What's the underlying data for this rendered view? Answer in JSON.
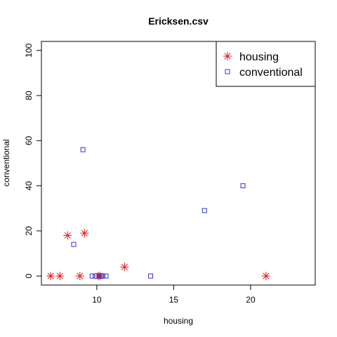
{
  "chart_data": {
    "type": "scatter",
    "title": "Ericksen.csv",
    "xlabel": "housing",
    "ylabel": "conventional",
    "xlim": [
      6.4,
      24.2
    ],
    "ylim": [
      -4,
      104
    ],
    "x_ticks": [
      10,
      15,
      20
    ],
    "y_ticks": [
      0,
      20,
      40,
      60,
      80,
      100
    ],
    "legend_position": "top-right",
    "grid": false,
    "series": [
      {
        "name": "housing",
        "marker": "asterisk",
        "color": "#e41a1c",
        "points": [
          {
            "x": 7.0,
            "y": 0
          },
          {
            "x": 7.6,
            "y": 0
          },
          {
            "x": 8.1,
            "y": 18
          },
          {
            "x": 8.9,
            "y": 0
          },
          {
            "x": 9.2,
            "y": 19
          },
          {
            "x": 10.1,
            "y": 0
          },
          {
            "x": 10.2,
            "y": 0
          },
          {
            "x": 11.8,
            "y": 4
          },
          {
            "x": 21.0,
            "y": 0
          }
        ]
      },
      {
        "name": "conventional",
        "marker": "square",
        "color": "#3333cc",
        "points": [
          {
            "x": 8.5,
            "y": 14
          },
          {
            "x": 9.1,
            "y": 56
          },
          {
            "x": 9.7,
            "y": 0
          },
          {
            "x": 9.9,
            "y": 0
          },
          {
            "x": 10.2,
            "y": 0
          },
          {
            "x": 10.3,
            "y": 0
          },
          {
            "x": 10.4,
            "y": 0
          },
          {
            "x": 10.6,
            "y": 0
          },
          {
            "x": 13.5,
            "y": 0
          },
          {
            "x": 17.0,
            "y": 29
          },
          {
            "x": 19.5,
            "y": 40
          }
        ]
      }
    ]
  }
}
